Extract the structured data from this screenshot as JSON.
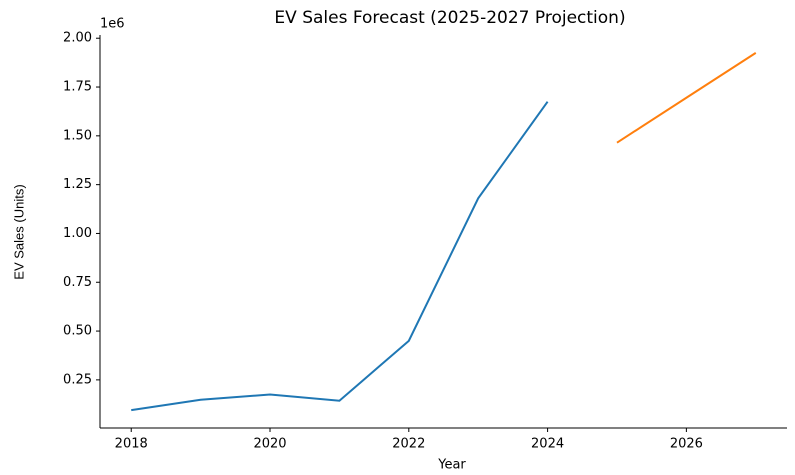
{
  "chart_data": {
    "type": "line",
    "title": "EV Sales Forecast (2025-2027 Projection)",
    "x_label": "Year",
    "y_label": "EV Sales (Units)",
    "y_offset_label": "1e6",
    "x": [
      2018,
      2019,
      2020,
      2021,
      2022,
      2023,
      2024,
      2025,
      2026,
      2027
    ],
    "series": [
      {
        "color": "#1f77b4",
        "values": [
          0.095,
          0.148,
          0.175,
          0.143,
          0.45,
          1.18,
          1.675,
          null,
          null,
          null
        ]
      },
      {
        "color": "#ff7f0e",
        "values": [
          null,
          null,
          null,
          null,
          null,
          null,
          null,
          1.465,
          1.695,
          1.925
        ]
      }
    ],
    "xlim": [
      2017.55,
      2027.45
    ],
    "xticks": [
      2018,
      2020,
      2022,
      2024,
      2026
    ],
    "ylim": [
      0.0035,
      2.0165
    ],
    "yticks": [
      0.25,
      {
        "value": 0.5,
        "label": "0.50"
      },
      0.75,
      {
        "value": 1.0,
        "label": "1.00"
      },
      1.25,
      {
        "value": 1.5,
        "label": "1.50"
      },
      1.75,
      {
        "value": 2.0,
        "label": "2.00"
      }
    ]
  }
}
